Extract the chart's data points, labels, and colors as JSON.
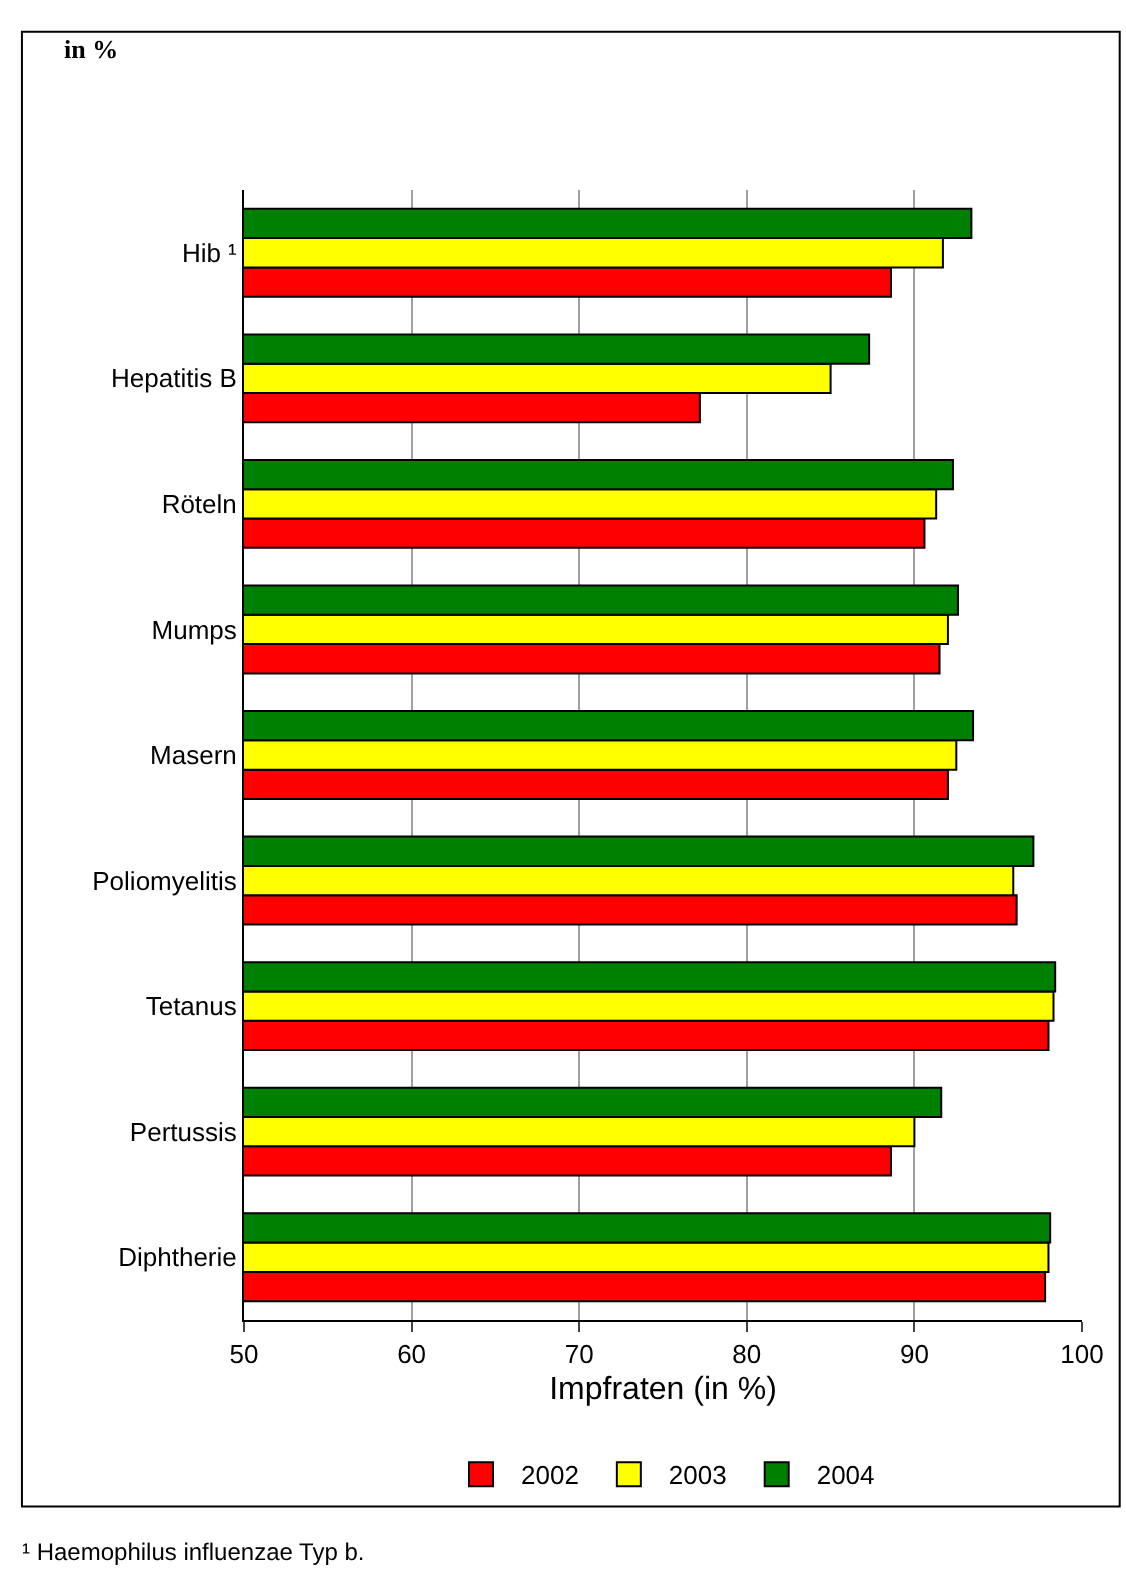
{
  "chart_data": {
    "type": "bar",
    "orientation": "horizontal",
    "title": "in %",
    "xlabel": "Impfraten (in %)",
    "categories": [
      "Hib ¹",
      "Hepatitis B",
      "Röteln",
      "Mumps",
      "Masern",
      "Poliomyelitis",
      "Tetanus",
      "Pertussis",
      "Diphtherie"
    ],
    "series": [
      {
        "name": "2002",
        "color": "#ff0000",
        "values": [
          88.6,
          77.2,
          90.6,
          91.5,
          92.0,
          96.1,
          98.0,
          88.6,
          97.8
        ]
      },
      {
        "name": "2003",
        "color": "#ffff00",
        "values": [
          91.7,
          85.0,
          91.3,
          92.0,
          92.5,
          95.9,
          98.3,
          90.0,
          98.0
        ]
      },
      {
        "name": "2004",
        "color": "#008000",
        "values": [
          93.4,
          87.3,
          92.3,
          92.6,
          93.5,
          97.1,
          98.4,
          91.6,
          98.1
        ]
      }
    ],
    "xlim": [
      50,
      100
    ],
    "xticks": [
      50,
      60,
      70,
      80,
      90,
      100
    ],
    "grid": "x",
    "legend": "bottom",
    "annotations": [
      "¹ Haemophilus influenzae Typ b."
    ]
  }
}
